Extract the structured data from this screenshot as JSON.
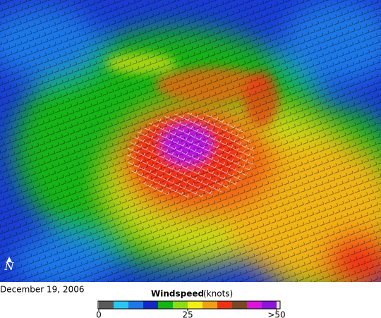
{
  "date": "December 19, 2006",
  "north_label": "N",
  "legend": {
    "title": "Windspeed",
    "unit": "(knots)",
    "range": [
      0,
      50
    ],
    "ticks": [
      0,
      25,
      {
        "value": 50,
        "label": ">50"
      }
    ],
    "colors": [
      "#5a5a5a",
      "#29c8f0",
      "#1e78e6",
      "#1428c8",
      "#14b414",
      "#8cdc14",
      "#f0f014",
      "#f0a014",
      "#f03214",
      "#7a4628",
      "#dc14dc",
      "#8c14dc"
    ]
  }
}
